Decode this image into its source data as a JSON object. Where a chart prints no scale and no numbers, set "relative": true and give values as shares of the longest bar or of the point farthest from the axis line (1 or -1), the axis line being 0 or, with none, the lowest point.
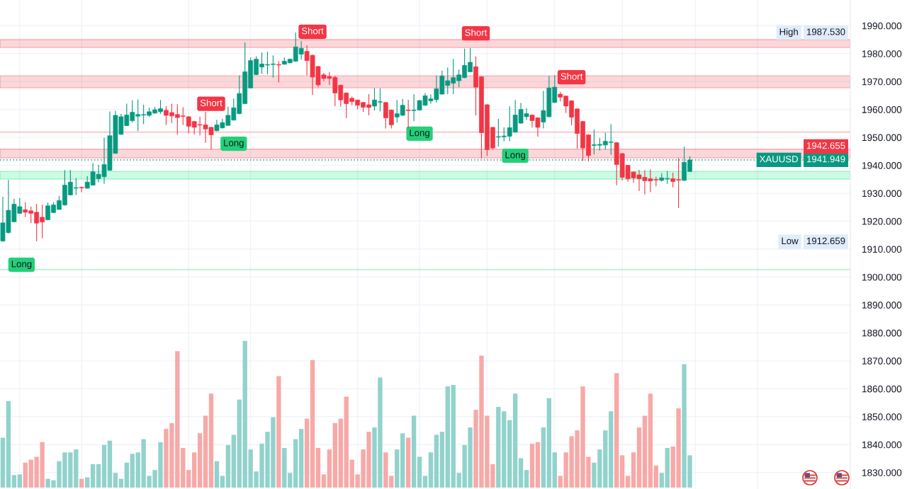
{
  "chart_data": [
    {
      "type": "candlestick",
      "categories": [
        null,
        null,
        null,
        null,
        null,
        null,
        null,
        null,
        null,
        null,
        null,
        null,
        null,
        null,
        null,
        null,
        null,
        null,
        null,
        null,
        null,
        null,
        null,
        null,
        null,
        null,
        null,
        null,
        null,
        null,
        null,
        null,
        null,
        null,
        null,
        null,
        null,
        null,
        null,
        null,
        null,
        null,
        null,
        null,
        null,
        null,
        null,
        null,
        null,
        null,
        null,
        null,
        null,
        null,
        null,
        null,
        null,
        null,
        null,
        null,
        null,
        null,
        null,
        null,
        null,
        null,
        null,
        null,
        null,
        null,
        null,
        null,
        null,
        null,
        null,
        null,
        null,
        null,
        null,
        null,
        null,
        null,
        null,
        null,
        null,
        null,
        null,
        null,
        null,
        null,
        null,
        null,
        null,
        null,
        null,
        null,
        null,
        null,
        null,
        null,
        null,
        null,
        null,
        null,
        null,
        null,
        null,
        null,
        null,
        null,
        null,
        null,
        null,
        null,
        null,
        null,
        null,
        null,
        null,
        null,
        null,
        null,
        null,
        null,
        null,
        null,
        null,
        null,
        null,
        null,
        null,
        null,
        null,
        null,
        null,
        null,
        null,
        null,
        null,
        null,
        null,
        null,
        null,
        null,
        null,
        null,
        null,
        null,
        null,
        null,
        null
      ],
      "ohlc": [
        [
          1912.9,
          1928.7,
          1912.659,
          1919.4
        ],
        [
          1915.9,
          1934.8,
          1915.6,
          1923.9
        ],
        [
          1919.8,
          1928.0,
          1919.6,
          1926.1
        ],
        [
          1922.8,
          1928.3,
          1922.6,
          1925.2
        ],
        [
          1924.1,
          1926.8,
          1921.5,
          1923.2
        ],
        [
          1923.7,
          1925.3,
          1919.3,
          1922.8
        ],
        [
          1923.2,
          1926.2,
          1912.8,
          1919.3
        ],
        [
          1921.4,
          1925.9,
          1913.9,
          1919.7
        ],
        [
          1920.5,
          1926.6,
          1920.3,
          1925.5
        ],
        [
          1923.1,
          1926.8,
          1922.9,
          1925.8
        ],
        [
          1924.2,
          1929.1,
          1924.1,
          1927.4
        ],
        [
          1925.8,
          1938.3,
          1925.6,
          1932.9
        ],
        [
          1929.4,
          1938.3,
          1929.2,
          1934.0
        ],
        [
          1931.8,
          1935.4,
          1929.4,
          1932.0
        ],
        [
          1932.1,
          1932.4,
          1930.4,
          1931.9
        ],
        [
          1931.8,
          1936.1,
          1931.7,
          1934.0
        ],
        [
          1932.9,
          1940.8,
          1932.8,
          1937.7
        ],
        [
          1935.2,
          1940.2,
          1933.8,
          1936.8
        ],
        [
          1935.9,
          1949.9,
          1933.4,
          1940.3
        ],
        [
          1938.2,
          1959.3,
          1938.0,
          1950.6
        ],
        [
          1944.3,
          1959.5,
          1944.1,
          1957.9
        ],
        [
          1951.1,
          1958.4,
          1950.9,
          1957.4
        ],
        [
          1954.2,
          1962.1,
          1954.1,
          1958.0
        ],
        [
          1956.0,
          1963.3,
          1955.3,
          1959.0
        ],
        [
          1957.6,
          1963.6,
          1952.3,
          1958.2
        ],
        [
          1958.0,
          1961.7,
          1954.7,
          1958.2
        ],
        [
          1957.9,
          1960.6,
          1957.4,
          1959.2
        ],
        [
          1958.7,
          1960.9,
          1958.4,
          1959.9
        ],
        [
          1959.2,
          1963.4,
          1958.4,
          1960.3
        ],
        [
          1959.7,
          1961.2,
          1954.4,
          1957.9
        ],
        [
          1958.9,
          1962.1,
          1955.2,
          1957.7
        ],
        [
          1958.2,
          1961.9,
          1950.9,
          1957.1
        ],
        [
          1957.7,
          1960.8,
          1954.4,
          1957.5
        ],
        [
          1957.4,
          1957.6,
          1951.5,
          1954.0
        ],
        [
          1955.7,
          1955.9,
          1951.1,
          1953.6
        ],
        [
          1954.6,
          1957.4,
          1950.7,
          1954.4
        ],
        [
          1954.5,
          1959.1,
          1948.1,
          1953.0
        ],
        [
          1953.6,
          1953.8,
          1945.7,
          1950.9
        ],
        [
          1952.4,
          1956.3,
          1952.2,
          1954.5
        ],
        [
          1953.4,
          1956.6,
          1953.2,
          1955.3
        ],
        [
          1954.3,
          1961.0,
          1954.2,
          1957.9
        ],
        [
          1956.2,
          1963.9,
          1956.0,
          1960.6
        ],
        [
          1958.5,
          1972.2,
          1958.3,
          1965.7
        ],
        [
          1962.1,
          1984.0,
          1961.9,
          1973.5
        ],
        [
          1967.7,
          1978.6,
          1967.6,
          1977.5
        ],
        [
          1972.5,
          1979.0,
          1972.3,
          1978.0
        ],
        [
          1975.2,
          1980.4,
          1972.8,
          1976.3
        ],
        [
          1975.9,
          1980.7,
          1972.6,
          1976.1
        ],
        [
          1976.1,
          1979.4,
          1971.4,
          1976.3
        ],
        [
          1976.1,
          1977.3,
          1969.7,
          1975.9
        ],
        [
          1976.2,
          1978.6,
          1976.0,
          1977.3
        ],
        [
          1976.7,
          1978.2,
          1976.5,
          1978.0
        ],
        [
          1977.3,
          1987.53,
          1977.1,
          1982.4
        ],
        [
          1979.8,
          1984.5,
          1977.9,
          1981.9
        ],
        [
          1980.8,
          1983.0,
          1972.2,
          1977.5
        ],
        [
          1979.4,
          1979.6,
          1965.2,
          1971.6
        ],
        [
          1975.4,
          1975.6,
          1968.0,
          1968.8
        ],
        [
          1972.4,
          1973.1,
          1970.1,
          1971.1
        ],
        [
          1971.8,
          1973.5,
          1968.8,
          1971.1
        ],
        [
          1971.5,
          1972.1,
          1961.2,
          1965.9
        ],
        [
          1968.7,
          1968.9,
          1961.0,
          1963.4
        ],
        [
          1965.9,
          1966.1,
          1956.9,
          1962.1
        ],
        [
          1964.0,
          1964.6,
          1961.5,
          1962.8
        ],
        [
          1963.4,
          1963.5,
          1960.0,
          1961.5
        ],
        [
          1962.5,
          1962.7,
          1959.1,
          1960.8
        ],
        [
          1961.7,
          1965.5,
          1957.9,
          1960.7
        ],
        [
          1961.2,
          1967.7,
          1959.6,
          1963.4
        ],
        [
          1962.6,
          1967.6,
          1959.3,
          1962.8
        ],
        [
          1962.5,
          1962.7,
          1953.2,
          1957.0
        ],
        [
          1959.8,
          1960.0,
          1953.2,
          1954.5
        ],
        [
          1957.3,
          1963.4,
          1955.3,
          1958.5
        ],
        [
          1957.9,
          1963.8,
          1957.7,
          1961.5
        ],
        [
          1959.8,
          1963.5,
          1953.2,
          1959.6
        ],
        [
          1959.6,
          1965.5,
          1955.8,
          1959.8
        ],
        [
          1959.8,
          1963.4,
          1959.6,
          1963.2
        ],
        [
          1961.5,
          1965.9,
          1961.3,
          1964.9
        ],
        [
          1963.1,
          1965.4,
          1962.1,
          1963.8
        ],
        [
          1963.5,
          1972.2,
          1962.5,
          1967.4
        ],
        [
          1965.5,
          1973.9,
          1965.3,
          1972.0
        ],
        [
          1968.6,
          1975.0,
          1965.5,
          1970.3
        ],
        [
          1969.4,
          1978.1,
          1965.5,
          1971.4
        ],
        [
          1970.3,
          1974.3,
          1968.0,
          1972.4
        ],
        [
          1971.4,
          1981.8,
          1971.2,
          1975.8
        ],
        [
          1973.5,
          1982.0,
          1973.3,
          1976.9
        ],
        [
          1975.3,
          1979.0,
          1957.9,
          1968.0
        ],
        [
          1971.7,
          1971.9,
          1942.5,
          1951.7
        ],
        [
          1961.7,
          1961.9,
          1943.3,
          1945.6
        ],
        [
          1953.6,
          1953.8,
          1945.6,
          1946.2
        ],
        [
          1950.1,
          1956.6,
          1946.7,
          1950.3
        ],
        [
          1950.2,
          1953.6,
          1948.6,
          1950.5
        ],
        [
          1950.4,
          1961.1,
          1948.6,
          1953.5
        ],
        [
          1951.9,
          1963.4,
          1951.7,
          1958.0
        ],
        [
          1955.1,
          1962.3,
          1954.9,
          1960.0
        ],
        [
          1957.4,
          1960.4,
          1956.2,
          1958.5
        ],
        [
          1958.0,
          1958.2,
          1953.5,
          1956.0
        ],
        [
          1957.0,
          1957.2,
          1950.3,
          1953.6
        ],
        [
          1955.5,
          1966.7,
          1953.2,
          1959.6
        ],
        [
          1957.4,
          1972.0,
          1957.2,
          1967.7
        ],
        [
          1962.5,
          1972.3,
          1962.3,
          1968.0
        ],
        [
          1965.5,
          1966.3,
          1962.9,
          1964.4
        ],
        [
          1964.8,
          1965.0,
          1958.7,
          1961.2
        ],
        [
          1963.1,
          1963.3,
          1954.3,
          1957.2
        ],
        [
          1960.2,
          1960.4,
          1945.9,
          1951.4
        ],
        [
          1955.7,
          1955.9,
          1941.6,
          1946.2
        ],
        [
          1950.9,
          1951.1,
          1941.4,
          1943.5
        ],
        [
          1947.1,
          1952.8,
          1943.9,
          1947.4
        ],
        [
          1947.2,
          1949.8,
          1945.2,
          1947.5
        ],
        [
          1947.3,
          1951.7,
          1945.6,
          1948.6
        ],
        [
          1948.2,
          1954.7,
          1943.8,
          1948.4
        ],
        [
          1948.1,
          1948.3,
          1932.9,
          1940.3
        ],
        [
          1944.2,
          1944.4,
          1934.6,
          1935.7
        ],
        [
          1940.0,
          1940.1,
          1934.2,
          1935.2
        ],
        [
          1937.6,
          1937.8,
          1933.8,
          1935.5
        ],
        [
          1936.6,
          1938.4,
          1930.8,
          1935.2
        ],
        [
          1935.7,
          1938.3,
          1929.6,
          1934.5
        ],
        [
          1935.2,
          1938.6,
          1930.4,
          1934.4
        ],
        [
          1934.9,
          1935.9,
          1932.5,
          1934.7
        ],
        [
          1934.6,
          1937.2,
          1934.2,
          1935.5
        ],
        [
          1935.1,
          1938.0,
          1933.4,
          1935.3
        ],
        [
          1935.2,
          1937.4,
          1932.1,
          1934.2
        ],
        [
          1934.9,
          1942.6,
          1924.7,
          1934.7
        ],
        [
          1934.6,
          1946.7,
          1934.4,
          1941.1
        ],
        [
          1937.8,
          1943.3,
          1937.6,
          1941.949
        ],
        null,
        null,
        null,
        null,
        null,
        null,
        null,
        null,
        null,
        null,
        null,
        null,
        null,
        null,
        null,
        null,
        null,
        null,
        null,
        null,
        null,
        null,
        null,
        null,
        null,
        null,
        null,
        null
      ],
      "colors": [
        "#089981",
        "#089981",
        "#089981",
        "#089981",
        "#f23645",
        "#f23645",
        "#f23645",
        "#f23645",
        "#089981",
        "#089981",
        "#089981",
        "#089981",
        "#089981",
        "#089981",
        "#f23645",
        "#089981",
        "#089981",
        "#089981",
        "#089981",
        "#089981",
        "#089981",
        "#089981",
        "#089981",
        "#089981",
        "#089981",
        "#089981",
        "#089981",
        "#089981",
        "#089981",
        "#f23645",
        "#f23645",
        "#f23645",
        "#f23645",
        "#f23645",
        "#f23645",
        "#f23645",
        "#f23645",
        "#f23645",
        "#089981",
        "#089981",
        "#089981",
        "#089981",
        "#089981",
        "#089981",
        "#089981",
        "#089981",
        "#089981",
        "#089981",
        "#089981",
        "#f23645",
        "#089981",
        "#089981",
        "#089981",
        "#089981",
        "#f23645",
        "#f23645",
        "#f23645",
        "#f23645",
        "#f23645",
        "#f23645",
        "#f23645",
        "#f23645",
        "#f23645",
        "#f23645",
        "#f23645",
        "#f23645",
        "#089981",
        "#089981",
        "#f23645",
        "#f23645",
        "#089981",
        "#089981",
        "#f23645",
        "#089981",
        "#089981",
        "#089981",
        "#089981",
        "#089981",
        "#089981",
        "#089981",
        "#089981",
        "#089981",
        "#089981",
        "#089981",
        "#f23645",
        "#f23645",
        "#f23645",
        "#f23645",
        "#089981",
        "#089981",
        "#089981",
        "#089981",
        "#089981",
        "#089981",
        "#f23645",
        "#f23645",
        "#089981",
        "#089981",
        "#089981",
        "#f23645",
        "#f23645",
        "#f23645",
        "#f23645",
        "#f23645",
        "#f23645",
        "#089981",
        "#089981",
        "#089981",
        "#089981",
        "#f23645",
        "#f23645",
        "#f23645",
        "#f23645",
        "#f23645",
        "#f23645",
        "#f23645",
        "#f23645",
        "#089981",
        "#089981",
        "#f23645",
        "#f23645",
        "#089981",
        "#089981",
        null,
        null,
        null,
        null,
        null,
        null,
        null,
        null,
        null,
        null,
        null,
        null,
        null,
        null,
        null,
        null,
        null,
        null,
        null,
        null,
        null,
        null,
        null,
        null,
        null,
        null,
        null,
        null
      ],
      "value_labels": [
        "Long",
        null,
        null,
        null,
        null,
        null,
        null,
        null,
        null,
        null,
        null,
        null,
        null,
        null,
        null,
        null,
        null,
        null,
        null,
        null,
        null,
        null,
        null,
        null,
        null,
        null,
        null,
        null,
        null,
        null,
        null,
        null,
        null,
        null,
        null,
        null,
        null,
        "Short",
        null,
        null,
        null,
        "Long",
        null,
        null,
        null,
        null,
        null,
        null,
        null,
        null,
        null,
        null,
        null,
        null,
        null,
        "Short",
        null,
        null,
        null,
        null,
        null,
        null,
        null,
        null,
        null,
        null,
        null,
        null,
        null,
        null,
        null,
        null,
        null,
        null,
        "Long",
        null,
        null,
        null,
        null,
        null,
        null,
        null,
        null,
        null,
        "Short",
        null,
        null,
        null,
        null,
        null,
        null,
        "Long",
        null,
        null,
        null,
        null,
        null,
        null,
        null,
        null,
        null,
        "Short",
        null,
        null,
        null,
        null,
        null,
        null,
        null,
        null,
        null,
        null,
        null,
        null,
        null,
        null,
        null,
        null,
        null,
        null,
        null,
        null,
        null,
        null,
        null,
        null,
        null,
        null,
        null,
        null,
        null,
        null,
        null,
        null,
        null,
        null,
        null,
        null,
        null,
        null,
        null,
        null,
        null,
        null,
        null,
        null,
        null,
        null,
        null,
        null,
        null
      ],
      "ylim": [
        1824.1,
        1999.2
      ],
      "yticks": [
        {
          "value": 1830,
          "label": "1830.000"
        },
        {
          "value": 1840,
          "label": "1840.000"
        },
        {
          "value": 1850,
          "label": "1850.000"
        },
        {
          "value": 1860,
          "label": "1860.000"
        },
        {
          "value": 1870,
          "label": "1870.000"
        },
        {
          "value": 1880,
          "label": "1880.000"
        },
        {
          "value": 1890,
          "label": "1890.000"
        },
        {
          "value": 1900,
          "label": "1900.000"
        },
        {
          "value": 1910,
          "label": "1910.000"
        },
        {
          "value": 1920,
          "label": "1920.000"
        },
        {
          "value": 1930,
          "label": "1930.000"
        },
        {
          "value": 1940,
          "label": "1940.000"
        },
        {
          "value": 1950,
          "label": "1950.000"
        },
        {
          "value": 1960,
          "label": "1960.000"
        },
        {
          "value": 1970,
          "label": "1970.000"
        },
        {
          "value": 1980,
          "label": "1980.000"
        },
        {
          "value": 1990,
          "label": "1990.000"
        }
      ],
      "grid": true,
      "tick_labels": "y",
      "bands": [
        {
          "axis": "y",
          "from": 1982.2,
          "to": 1985.0,
          "color": "#f23645"
        },
        {
          "axis": "y",
          "from": 1967.75,
          "to": 1972.05,
          "color": "#f23645"
        },
        {
          "axis": "y",
          "from": 1942.655,
          "to": 1945.8,
          "color": "#f23645",
          "label": "1942.655"
        },
        {
          "axis": "y",
          "from": 1935.05,
          "to": 1937.85,
          "color": "#00e676"
        }
      ],
      "ref_lines": [
        {
          "axis": "y",
          "value": 1951.9,
          "color": "#f9c2c2",
          "line_style": "solid"
        },
        {
          "axis": "y",
          "value": 1902.7,
          "color": "#b8f0d2",
          "line_style": "solid"
        },
        {
          "axis": "y",
          "value": 1941.949,
          "label": "1941.949",
          "color": "#089981",
          "line_style": "dotted"
        }
      ],
      "annotations": [
        {
          "text": "High",
          "y": 1987.53
        },
        "1987.530",
        {
          "text": "XAUUSD",
          "y": 1941.949
        },
        {
          "text": "Low",
          "y": 1912.659
        },
        "1912.659"
      ]
    },
    {
      "type": "bar",
      "relative": true,
      "tick_labels": false,
      "categories": [
        null,
        null,
        null,
        null,
        null,
        null,
        null,
        null,
        null,
        null,
        null,
        null,
        null,
        null,
        null,
        null,
        null,
        null,
        null,
        null,
        null,
        null,
        null,
        null,
        null,
        null,
        null,
        null,
        null,
        null,
        null,
        null,
        null,
        null,
        null,
        null,
        null,
        null,
        null,
        null,
        null,
        null,
        null,
        null,
        null,
        null,
        null,
        null,
        null,
        null,
        null,
        null,
        null,
        null,
        null,
        null,
        null,
        null,
        null,
        null,
        null,
        null,
        null,
        null,
        null,
        null,
        null,
        null,
        null,
        null,
        null,
        null,
        null,
        null,
        null,
        null,
        null,
        null,
        null,
        null,
        null,
        null,
        null,
        null,
        null,
        null,
        null,
        null,
        null,
        null,
        null,
        null,
        null,
        null,
        null,
        null,
        null,
        null,
        null,
        null,
        null,
        null,
        null,
        null,
        null,
        null,
        null,
        null,
        null,
        null,
        null,
        null,
        null,
        null,
        null,
        null,
        null,
        null,
        null,
        null,
        null,
        null,
        null,
        null,
        null,
        null,
        null,
        null,
        null,
        null,
        null,
        null,
        null,
        null,
        null,
        null,
        null,
        null,
        null,
        null,
        null,
        null,
        null,
        null,
        null,
        null,
        null,
        null,
        null,
        null,
        null
      ],
      "values": [
        0.34,
        0.59,
        0.085,
        0.09,
        0.17,
        0.19,
        0.21,
        0.31,
        0.06,
        0.05,
        0.18,
        0.24,
        0.24,
        0.26,
        0.06,
        0.07,
        0.16,
        0.16,
        0.29,
        0.32,
        0.1,
        0.06,
        0.17,
        0.23,
        0.24,
        0.33,
        0.08,
        0.12,
        0.31,
        0.4,
        0.44,
        0.93,
        0.27,
        0.12,
        0.24,
        0.37,
        0.49,
        0.64,
        0.18,
        0.08,
        0.29,
        0.36,
        0.6,
        1,
        0.26,
        0.11,
        0.3,
        0.38,
        0.48,
        0.76,
        0.27,
        0.1,
        0.33,
        0.4,
        0.47,
        0.87,
        0.27,
        0.09,
        0.26,
        0.44,
        0.47,
        0.62,
        0.19,
        0.09,
        0.26,
        0.38,
        0.41,
        0.75,
        0.24,
        0.08,
        0.26,
        0.37,
        0.34,
        0.49,
        0.21,
        0.08,
        0.24,
        0.36,
        0.38,
        0.69,
        0.7,
        0.1,
        0.29,
        0.41,
        0.53,
        0.9,
        0.49,
        0.16,
        0.55,
        0.52,
        0.46,
        0.64,
        0.2,
        0.12,
        0.3,
        0.31,
        0.41,
        0.61,
        0.24,
        0.08,
        0.24,
        0.35,
        0.39,
        0.69,
        0.21,
        0.17,
        0.26,
        0.39,
        0.52,
        0.78,
        0.22,
        0.08,
        0.24,
        0.41,
        0.49,
        0.64,
        0.15,
        0.1,
        0.27,
        0.28,
        0.54,
        0.84,
        0.22,
        null,
        null,
        null,
        null,
        null,
        null,
        null,
        null,
        null,
        null,
        null,
        null,
        null,
        null,
        null,
        null,
        null,
        null,
        null,
        null,
        null,
        null,
        null,
        null,
        null,
        null,
        null,
        null
      ],
      "colors": [
        "#92d2cc",
        "#92d2cc",
        "#92d2cc",
        "#92d2cc",
        "#f7a9a7",
        "#f7a9a7",
        "#f7a9a7",
        "#f7a9a7",
        "#92d2cc",
        "#92d2cc",
        "#92d2cc",
        "#92d2cc",
        "#92d2cc",
        "#92d2cc",
        "#f7a9a7",
        "#92d2cc",
        "#92d2cc",
        "#92d2cc",
        "#92d2cc",
        "#92d2cc",
        "#92d2cc",
        "#92d2cc",
        "#92d2cc",
        "#92d2cc",
        "#92d2cc",
        "#92d2cc",
        "#92d2cc",
        "#92d2cc",
        "#92d2cc",
        "#f7a9a7",
        "#f7a9a7",
        "#f7a9a7",
        "#f7a9a7",
        "#f7a9a7",
        "#f7a9a7",
        "#f7a9a7",
        "#f7a9a7",
        "#f7a9a7",
        "#92d2cc",
        "#92d2cc",
        "#92d2cc",
        "#92d2cc",
        "#92d2cc",
        "#92d2cc",
        "#92d2cc",
        "#92d2cc",
        "#92d2cc",
        "#92d2cc",
        "#92d2cc",
        "#f7a9a7",
        "#92d2cc",
        "#92d2cc",
        "#92d2cc",
        "#92d2cc",
        "#f7a9a7",
        "#f7a9a7",
        "#f7a9a7",
        "#f7a9a7",
        "#f7a9a7",
        "#f7a9a7",
        "#f7a9a7",
        "#f7a9a7",
        "#f7a9a7",
        "#f7a9a7",
        "#f7a9a7",
        "#f7a9a7",
        "#92d2cc",
        "#92d2cc",
        "#f7a9a7",
        "#f7a9a7",
        "#92d2cc",
        "#92d2cc",
        "#f7a9a7",
        "#92d2cc",
        "#92d2cc",
        "#92d2cc",
        "#92d2cc",
        "#92d2cc",
        "#92d2cc",
        "#92d2cc",
        "#92d2cc",
        "#92d2cc",
        "#92d2cc",
        "#92d2cc",
        "#f7a9a7",
        "#f7a9a7",
        "#f7a9a7",
        "#f7a9a7",
        "#92d2cc",
        "#92d2cc",
        "#92d2cc",
        "#92d2cc",
        "#92d2cc",
        "#92d2cc",
        "#f7a9a7",
        "#f7a9a7",
        "#92d2cc",
        "#92d2cc",
        "#92d2cc",
        "#f7a9a7",
        "#f7a9a7",
        "#f7a9a7",
        "#f7a9a7",
        "#f7a9a7",
        "#f7a9a7",
        "#92d2cc",
        "#92d2cc",
        "#92d2cc",
        "#92d2cc",
        "#f7a9a7",
        "#f7a9a7",
        "#f7a9a7",
        "#f7a9a7",
        "#f7a9a7",
        "#f7a9a7",
        "#f7a9a7",
        "#f7a9a7",
        "#92d2cc",
        "#92d2cc",
        "#f7a9a7",
        "#f7a9a7",
        "#92d2cc",
        "#92d2cc",
        null,
        null,
        null,
        null,
        null,
        null,
        null,
        null,
        null,
        null,
        null,
        null,
        null,
        null,
        null,
        null,
        null,
        null,
        null,
        null,
        null,
        null,
        null,
        null,
        null,
        null,
        null,
        null
      ]
    }
  ]
}
